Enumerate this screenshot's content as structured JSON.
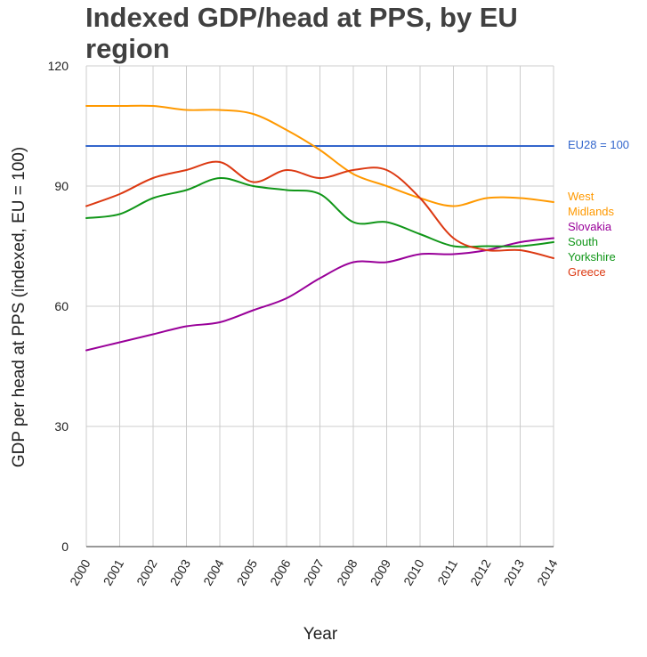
{
  "chart_data": {
    "type": "line",
    "title": "Indexed GDP/head at PPS, by EU region",
    "xlabel": "Year",
    "ylabel": "GDP per head at PPS (indexed, EU = 100)",
    "x": [
      "2000",
      "2001",
      "2002",
      "2003",
      "2004",
      "2005",
      "2006",
      "2007",
      "2008",
      "2009",
      "2010",
      "2011",
      "2012",
      "2013",
      "2014"
    ],
    "ylim": [
      0,
      120
    ],
    "yticks": [
      "0",
      "30",
      "60",
      "90",
      "120"
    ],
    "grid": true,
    "series": [
      {
        "name": "EU28 = 100",
        "color": "#3366cc",
        "values": [
          100,
          100,
          100,
          100,
          100,
          100,
          100,
          100,
          100,
          100,
          100,
          100,
          100,
          100,
          100
        ]
      },
      {
        "name": "West Midlands",
        "color": "#ff9900",
        "values": [
          110,
          110,
          110,
          109,
          109,
          108,
          104,
          99,
          93,
          90,
          87,
          85,
          87,
          87,
          86
        ]
      },
      {
        "name": "Slovakia",
        "color": "#990099",
        "values": [
          49,
          51,
          53,
          55,
          56,
          59,
          62,
          67,
          71,
          71,
          73,
          73,
          74,
          76,
          77
        ]
      },
      {
        "name": "South Yorkshire",
        "color": "#109618",
        "values": [
          82,
          83,
          87,
          89,
          92,
          90,
          89,
          88,
          81,
          81,
          78,
          75,
          75,
          75,
          76
        ]
      },
      {
        "name": "Greece",
        "color": "#dc3912",
        "values": [
          85,
          88,
          92,
          94,
          96,
          91,
          94,
          92,
          94,
          94,
          87,
          77,
          74,
          74,
          72
        ]
      }
    ],
    "labels": [
      {
        "text": "EU28 = 100",
        "series": 0
      },
      {
        "text": "West",
        "series": 1
      },
      {
        "text": "Midlands",
        "series": 1
      },
      {
        "text": "Slovakia",
        "series": 2
      },
      {
        "text": "South",
        "series": 3
      },
      {
        "text": "Yorkshire",
        "series": 3
      },
      {
        "text": "Greece",
        "series": 4
      }
    ]
  }
}
